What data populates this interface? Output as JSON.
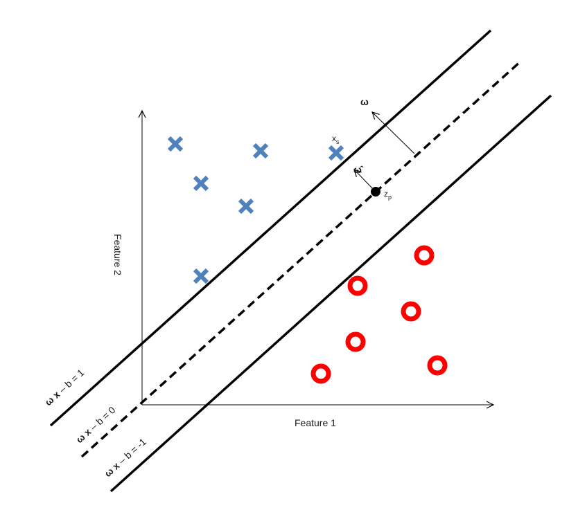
{
  "axes": {
    "x_label": "Feature 1",
    "y_label": "Feature 2"
  },
  "lines": [
    {
      "id": "upper",
      "eq_bold": "ω x",
      "eq_rest": " – b = 1"
    },
    {
      "id": "decision",
      "eq_bold": "ω x",
      "eq_rest": " – b = 0"
    },
    {
      "id": "lower",
      "eq_bold": "ω x",
      "eq_rest": " – b = -1"
    }
  ],
  "vectors": {
    "w": "ω",
    "w_hat": "ω̂"
  },
  "points": {
    "x_s": {
      "base": "x",
      "sub": "s"
    },
    "z_p": {
      "base": "z",
      "sub": "p"
    }
  },
  "class_positive": {
    "marker": "cross",
    "color": "#4f81bd",
    "count": 6
  },
  "class_negative": {
    "marker": "ring",
    "color": "#ff0000",
    "count": 6
  }
}
